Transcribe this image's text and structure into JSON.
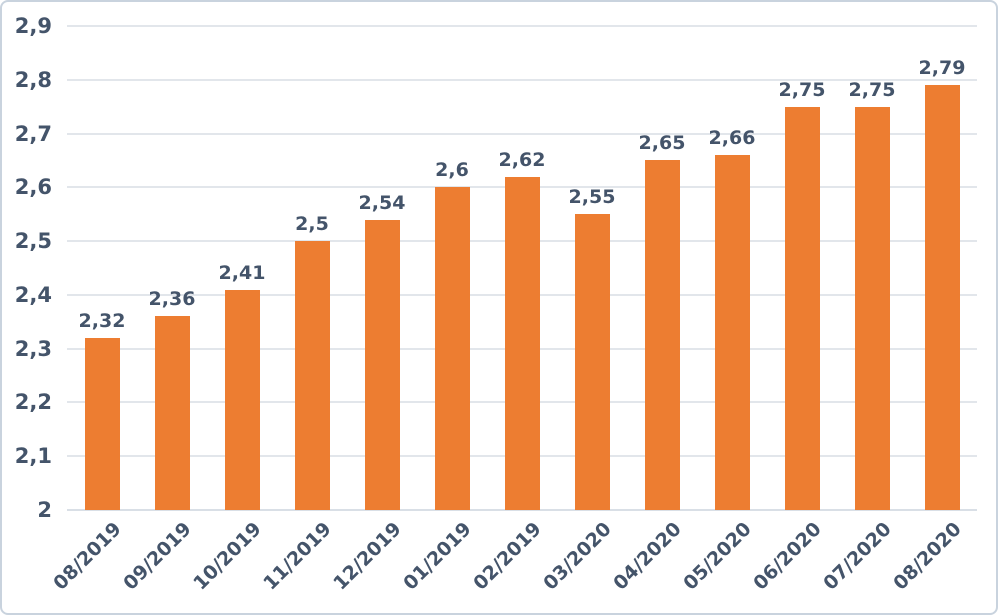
{
  "chart_data": {
    "type": "bar",
    "categories": [
      "08/2019",
      "09/2019",
      "10/2019",
      "11/2019",
      "12/2019",
      "01/2019",
      "02/2019",
      "03/2020",
      "04/2020",
      "05/2020",
      "06/2020",
      "07/2020",
      "08/2020"
    ],
    "values": [
      2.32,
      2.36,
      2.41,
      2.5,
      2.54,
      2.6,
      2.62,
      2.55,
      2.65,
      2.66,
      2.75,
      2.75,
      2.79
    ],
    "value_labels": [
      "2,32",
      "2,36",
      "2,41",
      "2,5",
      "2,54",
      "2,6",
      "2,62",
      "2,55",
      "2,65",
      "2,66",
      "2,75",
      "2,75",
      "2,79"
    ],
    "title": "",
    "xlabel": "",
    "ylabel": "",
    "ylim": [
      2.0,
      2.9
    ],
    "y_tick_values": [
      2.0,
      2.1,
      2.2,
      2.3,
      2.4,
      2.5,
      2.6,
      2.7,
      2.8,
      2.9
    ],
    "y_tick_labels": [
      "2",
      "2,1",
      "2,2",
      "2,3",
      "2,4",
      "2,5",
      "2,6",
      "2,7",
      "2,8",
      "2,9"
    ],
    "decimal_separator": ",",
    "grid": true,
    "legend": false,
    "colors": {
      "bar": "#ED7D31",
      "label_text": "#44546A",
      "gridline": "#E2E6EB",
      "axis_line": "#D9DFE6",
      "frame_border": "#C9D3DE",
      "background": "#FFFFFF"
    }
  }
}
